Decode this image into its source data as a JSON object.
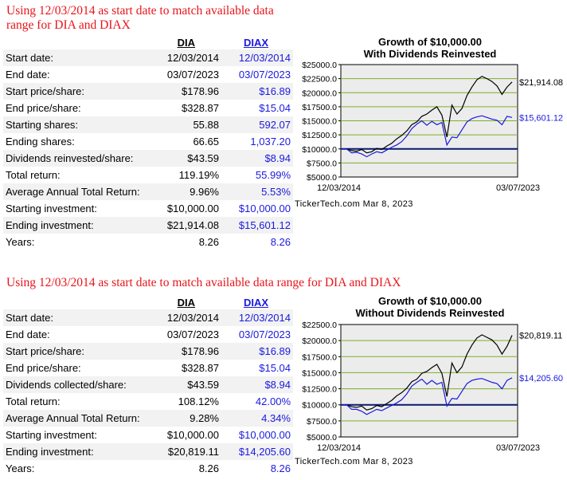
{
  "top": {
    "heading": "Using 12/03/2014 as start date to match available data range for DIA and DIAX",
    "col1": "DIA",
    "col2": "DIAX",
    "rows": [
      {
        "label": "Start date:",
        "dia": "12/03/2014",
        "diax": "12/03/2014"
      },
      {
        "label": "End date:",
        "dia": "03/07/2023",
        "diax": "03/07/2023"
      },
      {
        "label": "Start price/share:",
        "dia": "$178.96",
        "diax": "$16.89"
      },
      {
        "label": "End price/share:",
        "dia": "$328.87",
        "diax": "$15.04"
      },
      {
        "label": "Starting shares:",
        "dia": "55.88",
        "diax": "592.07"
      },
      {
        "label": "Ending shares:",
        "dia": "66.65",
        "diax": "1,037.20"
      },
      {
        "label": "Dividends reinvested/share:",
        "dia": "$43.59",
        "diax": "$8.94"
      },
      {
        "label": "Total return:",
        "dia": "119.19%",
        "diax": "55.99%"
      },
      {
        "label": "Average Annual Total Return:",
        "dia": "9.96%",
        "diax": "5.53%"
      },
      {
        "label": "Starting investment:",
        "dia": "$10,000.00",
        "diax": "$10,000.00"
      },
      {
        "label": "Ending investment:",
        "dia": "$21,914.08",
        "diax": "$15,601.12"
      },
      {
        "label": "Years:",
        "dia": "8.26",
        "diax": "8.26"
      }
    ],
    "chart_title_1": "Growth of $10,000.00",
    "chart_title_2": "With Dividends Reinvested",
    "credit": "TickerTech.com Mar 8, 2023"
  },
  "bottom": {
    "heading": "Using 12/03/2014 as start date to match available data range for DIA and DIAX",
    "col1": "DIA",
    "col2": "DIAX",
    "rows": [
      {
        "label": "Start date:",
        "dia": "12/03/2014",
        "diax": "12/03/2014"
      },
      {
        "label": "End date:",
        "dia": "03/07/2023",
        "diax": "03/07/2023"
      },
      {
        "label": "Start price/share:",
        "dia": "$178.96",
        "diax": "$16.89"
      },
      {
        "label": "End price/share:",
        "dia": "$328.87",
        "diax": "$15.04"
      },
      {
        "label": "Dividends collected/share:",
        "dia": "$43.59",
        "diax": "$8.94"
      },
      {
        "label": "Total return:",
        "dia": "108.12%",
        "diax": "42.00%"
      },
      {
        "label": "Average Annual Total Return:",
        "dia": "9.28%",
        "diax": "4.34%"
      },
      {
        "label": "Starting investment:",
        "dia": "$10,000.00",
        "diax": "$10,000.00"
      },
      {
        "label": "Ending investment:",
        "dia": "$20,819.11",
        "diax": "$14,205.60"
      },
      {
        "label": "Years:",
        "dia": "8.26",
        "diax": "8.26"
      }
    ],
    "chart_title_1": "Growth of $10,000.00",
    "chart_title_2": "Without Dividends Reinvested",
    "credit": "TickerTech.com Mar 8, 2023"
  },
  "chart_data": [
    {
      "type": "line",
      "title": "Growth of $10,000.00 With Dividends Reinvested",
      "x_labels": [
        "12/03/2014",
        "03/07/2023"
      ],
      "ylim": [
        5000,
        25000
      ],
      "y_ticks": [
        "$25000.0",
        "$22500.0",
        "$20000.0",
        "$17500.0",
        "$15000.0",
        "$12500.0",
        "$10000.0",
        "$7500.0",
        "$5000.0"
      ],
      "y_tick_values": [
        25000,
        22500,
        20000,
        17500,
        15000,
        12500,
        10000,
        7500,
        5000
      ],
      "baseline": 10000,
      "series": [
        {
          "name": "DIA",
          "color": "#000000",
          "end_label": "$21,914.08",
          "values": [
            10000,
            10000,
            9700,
            9600,
            9900,
            9300,
            9500,
            10100,
            9900,
            10500,
            11000,
            11800,
            12400,
            13200,
            14300,
            14800,
            15800,
            16200,
            16900,
            17500,
            16000,
            12100,
            17800,
            16200,
            17200,
            19500,
            21000,
            22300,
            22900,
            22500,
            22000,
            21200,
            19700,
            21000,
            21914
          ]
        },
        {
          "name": "DIAX",
          "color": "#1a1adf",
          "end_label": "$15,601.12",
          "values": [
            10000,
            10000,
            9300,
            9400,
            9100,
            8600,
            9100,
            9500,
            9300,
            9800,
            10300,
            10700,
            11300,
            12300,
            13600,
            14400,
            15000,
            14200,
            14900,
            14300,
            14700,
            10700,
            12100,
            12000,
            13400,
            14800,
            15400,
            15700,
            15900,
            15600,
            15300,
            15100,
            14300,
            15800,
            15601
          ]
        }
      ]
    },
    {
      "type": "line",
      "title": "Growth of $10,000.00 Without Dividends Reinvested",
      "x_labels": [
        "12/03/2014",
        "03/07/2023"
      ],
      "ylim": [
        5000,
        22500
      ],
      "y_ticks": [
        "$22500.0",
        "$20000.0",
        "$17500.0",
        "$15000.0",
        "$12500.0",
        "$10000.0",
        "$7500.0",
        "$5000.0"
      ],
      "y_tick_values": [
        22500,
        20000,
        17500,
        15000,
        12500,
        10000,
        7500,
        5000
      ],
      "baseline": 10000,
      "series": [
        {
          "name": "DIA",
          "color": "#000000",
          "end_label": "$20,819.11",
          "values": [
            10000,
            10000,
            9700,
            9600,
            9800,
            9200,
            9400,
            9900,
            9700,
            10200,
            10700,
            11400,
            11900,
            12600,
            13600,
            14000,
            14900,
            15200,
            15800,
            16300,
            14900,
            11300,
            16500,
            15000,
            15900,
            17900,
            19300,
            20400,
            20900,
            20500,
            20100,
            19300,
            17900,
            19100,
            20819
          ]
        },
        {
          "name": "DIAX",
          "color": "#1a1adf",
          "end_label": "$14,205.60",
          "values": [
            10000,
            10000,
            9300,
            9300,
            9000,
            8500,
            8900,
            9300,
            9100,
            9500,
            9900,
            10300,
            10800,
            11700,
            12900,
            13500,
            14000,
            13200,
            13800,
            13200,
            13500,
            9800,
            11000,
            10900,
            12100,
            13300,
            13800,
            14000,
            14100,
            13800,
            13500,
            13300,
            12500,
            13800,
            14205
          ]
        }
      ]
    }
  ]
}
